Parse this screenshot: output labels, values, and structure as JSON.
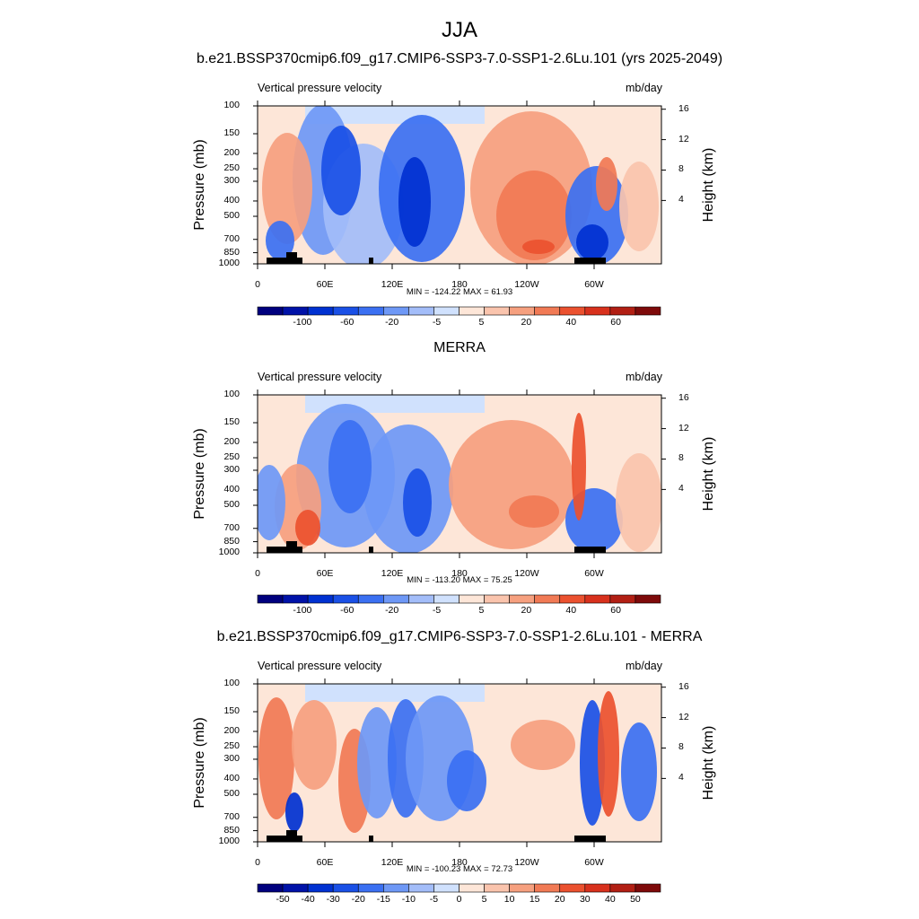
{
  "figure": {
    "title": "JJA",
    "panels": [
      {
        "title": "b.e21.BSSP370cmip6.f09_g17.CMIP6-SSP3-7.0-SSP1-2.6Lu.101 (yrs 2025-2049)",
        "variable": "Vertical pressure velocity",
        "units": "mb/day",
        "minmax": "MIN = -124.22  MAX =  61.93",
        "colorbar_labels": [
          "-100",
          "-60",
          "-20",
          "-5",
          "5",
          "20",
          "40",
          "60"
        ],
        "colorbar_colors": [
          "#00007e",
          "#0012a8",
          "#0031d1",
          "#1a50e6",
          "#3b70f2",
          "#6e98f6",
          "#a3bdf9",
          "#d0e1fd",
          "#fde6d8",
          "#fac4ad",
          "#f6a07f",
          "#f17a55",
          "#eb512f",
          "#d8311d",
          "#b21f14",
          "#7e0a0a"
        ]
      },
      {
        "title": "MERRA",
        "variable": "Vertical pressure velocity",
        "units": "mb/day",
        "minmax": "MIN = -113.20  MAX =  75.25",
        "colorbar_labels": [
          "-100",
          "-60",
          "-20",
          "-5",
          "5",
          "20",
          "40",
          "60"
        ],
        "colorbar_colors": [
          "#00007e",
          "#0012a8",
          "#0031d1",
          "#1a50e6",
          "#3b70f2",
          "#6e98f6",
          "#a3bdf9",
          "#d0e1fd",
          "#fde6d8",
          "#fac4ad",
          "#f6a07f",
          "#f17a55",
          "#eb512f",
          "#d8311d",
          "#b21f14",
          "#7e0a0a"
        ]
      },
      {
        "title": "b.e21.BSSP370cmip6.f09_g17.CMIP6-SSP3-7.0-SSP1-2.6Lu.101 - MERRA",
        "variable": "Vertical pressure velocity",
        "units": "mb/day",
        "minmax": "MIN = -100.23  MAX =  72.73",
        "colorbar_labels": [
          "-50",
          "-40",
          "-30",
          "-20",
          "-15",
          "-10",
          "-5",
          "0",
          "5",
          "10",
          "15",
          "20",
          "30",
          "40",
          "50"
        ],
        "colorbar_colors": [
          "#00007e",
          "#0012a8",
          "#0031d1",
          "#1a50e6",
          "#3b70f2",
          "#6e98f6",
          "#a3bdf9",
          "#d0e1fd",
          "#fde6d8",
          "#fac4ad",
          "#f6a07f",
          "#f17a55",
          "#eb512f",
          "#d8311d",
          "#b21f14",
          "#7e0a0a"
        ]
      }
    ]
  },
  "chart_data": {
    "type": "heatmap",
    "x_tick_labels": [
      "0",
      "60E",
      "120E",
      "180",
      "120W",
      "60W"
    ],
    "y_left_label": "Pressure (mb)",
    "y_left_ticks": [
      "100",
      "150",
      "200",
      "250",
      "300",
      "400",
      "500",
      "700",
      "850",
      "1000"
    ],
    "y_left_values": [
      100,
      150,
      200,
      250,
      300,
      400,
      500,
      700,
      850,
      1000
    ],
    "y_right_label": "Height (km)",
    "y_right_ticks": [
      "16",
      "12",
      "8",
      "4"
    ],
    "y_right_values": [
      16,
      12,
      8,
      4
    ]
  }
}
